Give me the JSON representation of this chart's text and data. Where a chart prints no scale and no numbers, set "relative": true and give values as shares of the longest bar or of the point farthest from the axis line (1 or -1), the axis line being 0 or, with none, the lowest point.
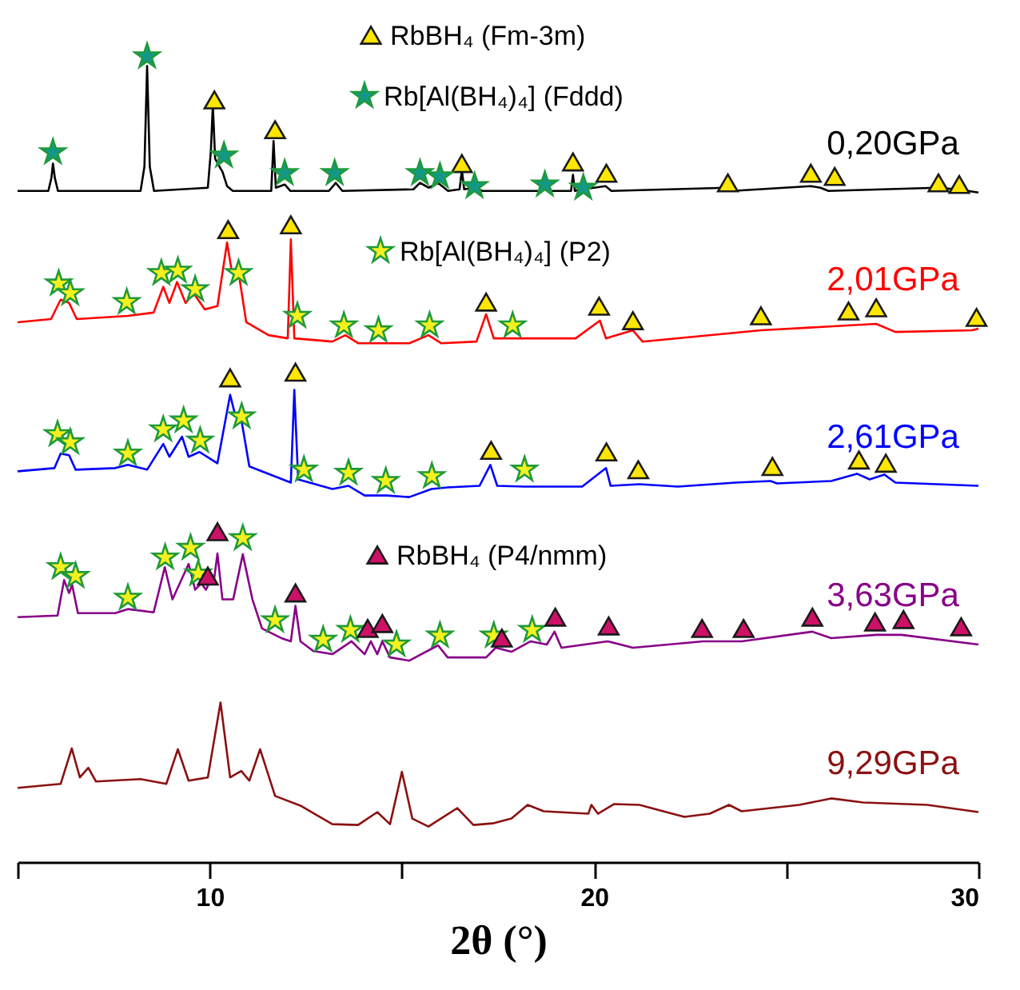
{
  "chart_data": {
    "type": "line",
    "relative": true,
    "legend": "top",
    "xlabel": "2θ (°)",
    "xlim": [
      5,
      30
    ],
    "xticks": [
      {
        "value": 5,
        "label": null
      },
      10,
      {
        "value": 15,
        "label": null
      },
      20,
      {
        "value": 25,
        "label": null
      },
      30
    ],
    "series": [
      {
        "name": "0,20GPa",
        "color": "#000000",
        "x": [
          5.0,
          5.8,
          5.88,
          5.92,
          5.97,
          6.05,
          8.2,
          8.3,
          8.37,
          8.44,
          8.55,
          9.95,
          10.03,
          10.08,
          10.14,
          10.28,
          10.33,
          10.45,
          10.6,
          11.6,
          11.66,
          11.72,
          11.95,
          12.1,
          13.1,
          13.28,
          13.45,
          15.3,
          15.47,
          15.7,
          15.94,
          16.2,
          16.5,
          16.56,
          16.62,
          16.86,
          17.1,
          18.6,
          18.69,
          18.8,
          19.4,
          19.45,
          19.5,
          19.7,
          20.3,
          20.45,
          23.47,
          23.6,
          25.64,
          25.89,
          26.1,
          28.92,
          29.46,
          30.0
        ],
        "values": [
          0.833,
          0.833,
          0.849,
          0.867,
          0.849,
          0.833,
          0.833,
          0.863,
          0.988,
          0.863,
          0.833,
          0.837,
          0.883,
          0.94,
          0.873,
          0.861,
          0.857,
          0.839,
          0.833,
          0.833,
          0.895,
          0.837,
          0.841,
          0.833,
          0.833,
          0.843,
          0.833,
          0.835,
          0.843,
          0.837,
          0.843,
          0.833,
          0.835,
          0.859,
          0.835,
          0.837,
          0.833,
          0.833,
          0.837,
          0.833,
          0.833,
          0.853,
          0.833,
          0.835,
          0.839,
          0.833,
          0.837,
          0.833,
          0.839,
          0.837,
          0.833,
          0.837,
          0.835,
          0.831
        ]
      },
      {
        "name": "2,01GPa",
        "color": "#ff0000",
        "x": [
          5.0,
          5.87,
          6.12,
          6.34,
          6.54,
          7.87,
          8.54,
          8.79,
          8.95,
          9.15,
          9.37,
          9.58,
          9.87,
          10.2,
          10.45,
          10.57,
          10.73,
          10.95,
          11.53,
          12.03,
          12.11,
          12.2,
          13.19,
          13.53,
          13.86,
          14.44,
          15.19,
          15.69,
          16.02,
          16.94,
          17.19,
          17.39,
          19.52,
          20.15,
          20.31,
          21.01,
          21.26,
          24.34,
          26.59,
          27.34,
          27.84,
          29.83,
          30.0
        ],
        "values": [
          0.67,
          0.674,
          0.698,
          0.694,
          0.674,
          0.678,
          0.682,
          0.714,
          0.694,
          0.72,
          0.694,
          0.706,
          0.686,
          0.69,
          0.769,
          0.734,
          0.738,
          0.67,
          0.654,
          0.65,
          0.773,
          0.65,
          0.646,
          0.654,
          0.644,
          0.644,
          0.644,
          0.654,
          0.644,
          0.646,
          0.68,
          0.65,
          0.65,
          0.672,
          0.65,
          0.66,
          0.646,
          0.66,
          0.666,
          0.668,
          0.658,
          0.66,
          0.662
        ]
      },
      {
        "name": "2,61GPa",
        "color": "#0000ff",
        "x": [
          5.0,
          5.96,
          6.12,
          6.34,
          6.51,
          7.54,
          7.87,
          8.37,
          8.79,
          8.95,
          9.28,
          9.45,
          9.73,
          10.2,
          10.53,
          10.66,
          10.83,
          11.03,
          12.11,
          12.2,
          12.3,
          13.19,
          13.61,
          14.03,
          14.61,
          15.19,
          15.77,
          16.19,
          17.02,
          17.3,
          17.48,
          18.19,
          19.69,
          20.31,
          20.43,
          21.18,
          22.18,
          23.68,
          24.59,
          24.76,
          26.17,
          26.84,
          27.17,
          27.55,
          27.84,
          30.0
        ],
        "values": [
          0.485,
          0.489,
          0.507,
          0.505,
          0.487,
          0.489,
          0.493,
          0.487,
          0.519,
          0.503,
          0.528,
          0.503,
          0.509,
          0.495,
          0.58,
          0.555,
          0.547,
          0.491,
          0.471,
          0.586,
          0.475,
          0.463,
          0.467,
          0.455,
          0.455,
          0.453,
          0.463,
          0.465,
          0.467,
          0.493,
          0.467,
          0.466,
          0.466,
          0.489,
          0.467,
          0.469,
          0.466,
          0.471,
          0.473,
          0.47,
          0.473,
          0.482,
          0.475,
          0.481,
          0.471,
          0.467
        ]
      },
      {
        "name": "3,63GPa",
        "color": "#880088",
        "x": [
          5.0,
          6.04,
          6.21,
          6.34,
          6.42,
          6.57,
          7.54,
          7.87,
          8.54,
          8.83,
          9.03,
          9.45,
          9.62,
          9.78,
          9.9,
          10.03,
          10.1,
          10.2,
          10.33,
          10.61,
          10.86,
          11.11,
          11.36,
          11.86,
          12.11,
          12.23,
          12.36,
          12.69,
          13.19,
          13.69,
          14.03,
          14.19,
          14.36,
          14.49,
          14.69,
          15.19,
          15.94,
          16.19,
          17.19,
          17.44,
          17.85,
          18.35,
          18.77,
          18.97,
          19.15,
          20.35,
          21.01,
          22.84,
          23.84,
          25.68,
          26.17,
          27.34,
          28.0,
          30.0
        ],
        "values": [
          0.304,
          0.306,
          0.35,
          0.334,
          0.344,
          0.309,
          0.309,
          0.314,
          0.31,
          0.366,
          0.326,
          0.37,
          0.338,
          0.346,
          0.338,
          0.351,
          0.346,
          0.383,
          0.326,
          0.326,
          0.382,
          0.326,
          0.29,
          0.278,
          0.274,
          0.318,
          0.274,
          0.262,
          0.258,
          0.274,
          0.258,
          0.274,
          0.258,
          0.274,
          0.254,
          0.25,
          0.269,
          0.254,
          0.254,
          0.266,
          0.261,
          0.274,
          0.27,
          0.286,
          0.266,
          0.274,
          0.266,
          0.274,
          0.274,
          0.286,
          0.278,
          0.282,
          0.282,
          0.27
        ]
      },
      {
        "name": "9,29GPa",
        "color": "#8b1111",
        "x": [
          5.0,
          6.12,
          6.41,
          6.62,
          6.84,
          7.04,
          8.2,
          8.87,
          9.17,
          9.45,
          9.95,
          10.28,
          10.53,
          10.82,
          11.03,
          11.31,
          11.7,
          12.36,
          13.19,
          13.86,
          14.36,
          14.69,
          15.0,
          15.27,
          15.69,
          16.44,
          16.86,
          17.36,
          17.85,
          18.27,
          18.69,
          19.85,
          19.93,
          20.1,
          20.52,
          21.18,
          22.35,
          23.01,
          23.51,
          23.84,
          25.34,
          26.17,
          27.0,
          28.67,
          30.0
        ],
        "values": [
          0.092,
          0.097,
          0.141,
          0.105,
          0.117,
          0.1,
          0.103,
          0.097,
          0.14,
          0.101,
          0.105,
          0.198,
          0.105,
          0.113,
          0.101,
          0.14,
          0.082,
          0.07,
          0.047,
          0.046,
          0.062,
          0.047,
          0.112,
          0.054,
          0.044,
          0.067,
          0.046,
          0.048,
          0.054,
          0.071,
          0.063,
          0.06,
          0.071,
          0.06,
          0.072,
          0.071,
          0.056,
          0.06,
          0.071,
          0.063,
          0.071,
          0.079,
          0.074,
          0.071,
          0.062
        ]
      },
      {
        "name": "RbBH₄ (Fm-3m)",
        "type": "scatter",
        "marker": "triangle",
        "color": "#ffe600",
        "x": [
          10.12,
          11.7,
          16.56,
          19.45,
          20.32,
          23.48,
          25.64,
          26.26,
          28.96,
          29.5,
          10.48,
          12.11,
          17.19,
          20.13,
          21.01,
          24.34,
          26.62,
          27.34,
          29.95,
          10.53,
          12.23,
          17.32,
          20.32,
          21.15,
          24.64,
          26.89,
          27.59
        ],
        "values": [
          0.946,
          0.909,
          0.867,
          0.869,
          0.855,
          0.843,
          0.855,
          0.851,
          0.843,
          0.841,
          0.785,
          0.791,
          0.695,
          0.69,
          0.672,
          0.678,
          0.684,
          0.688,
          0.676,
          0.601,
          0.608,
          0.511,
          0.509,
          0.487,
          0.491,
          0.499,
          0.495
        ]
      },
      {
        "name": "Rb[Al(BH₄)₄] (Fddd)",
        "type": "scatter",
        "marker": "star",
        "color": "#12988a",
        "x": [
          5.92,
          8.37,
          10.37,
          11.95,
          13.25,
          15.47,
          15.99,
          16.89,
          18.72,
          19.72
        ],
        "values": [
          0.881,
          1.0,
          0.877,
          0.855,
          0.855,
          0.855,
          0.851,
          0.839,
          0.841,
          0.837
        ]
      },
      {
        "name": "Rb[Al(BH₄)₄] (P2)",
        "type": "scatter",
        "marker": "star",
        "color": "#f5f01e",
        "x": [
          6.07,
          6.37,
          7.84,
          8.74,
          9.17,
          9.62,
          10.75,
          12.28,
          13.49,
          14.39,
          15.72,
          17.88,
          6.04,
          6.37,
          7.87,
          8.79,
          9.32,
          9.75,
          10.83,
          12.45,
          13.61,
          14.58,
          15.78,
          18.19,
          6.12,
          6.51,
          7.87,
          8.84,
          9.5,
          9.7,
          10.86,
          11.7,
          12.95,
          13.66,
          14.86,
          15.99,
          17.39,
          18.39
        ],
        "values": [
          0.718,
          0.706,
          0.695,
          0.731,
          0.734,
          0.711,
          0.731,
          0.678,
          0.666,
          0.66,
          0.666,
          0.666,
          0.531,
          0.521,
          0.507,
          0.537,
          0.548,
          0.523,
          0.553,
          0.487,
          0.483,
          0.473,
          0.479,
          0.487,
          0.366,
          0.355,
          0.328,
          0.378,
          0.39,
          0.358,
          0.402,
          0.3,
          0.276,
          0.288,
          0.27,
          0.281,
          0.281,
          0.288
        ]
      },
      {
        "name": "RbBH₄ (P4/nmm)",
        "type": "scatter",
        "marker": "triangle",
        "color": "#cc1166",
        "x": [
          10.2,
          9.95,
          12.23,
          14.11,
          14.49,
          17.6,
          18.99,
          20.38,
          22.81,
          23.89,
          25.68,
          27.31,
          28.05,
          29.55
        ],
        "values": [
          0.41,
          0.355,
          0.334,
          0.29,
          0.296,
          0.278,
          0.304,
          0.293,
          0.29,
          0.29,
          0.304,
          0.298,
          0.301,
          0.292
        ]
      }
    ]
  }
}
